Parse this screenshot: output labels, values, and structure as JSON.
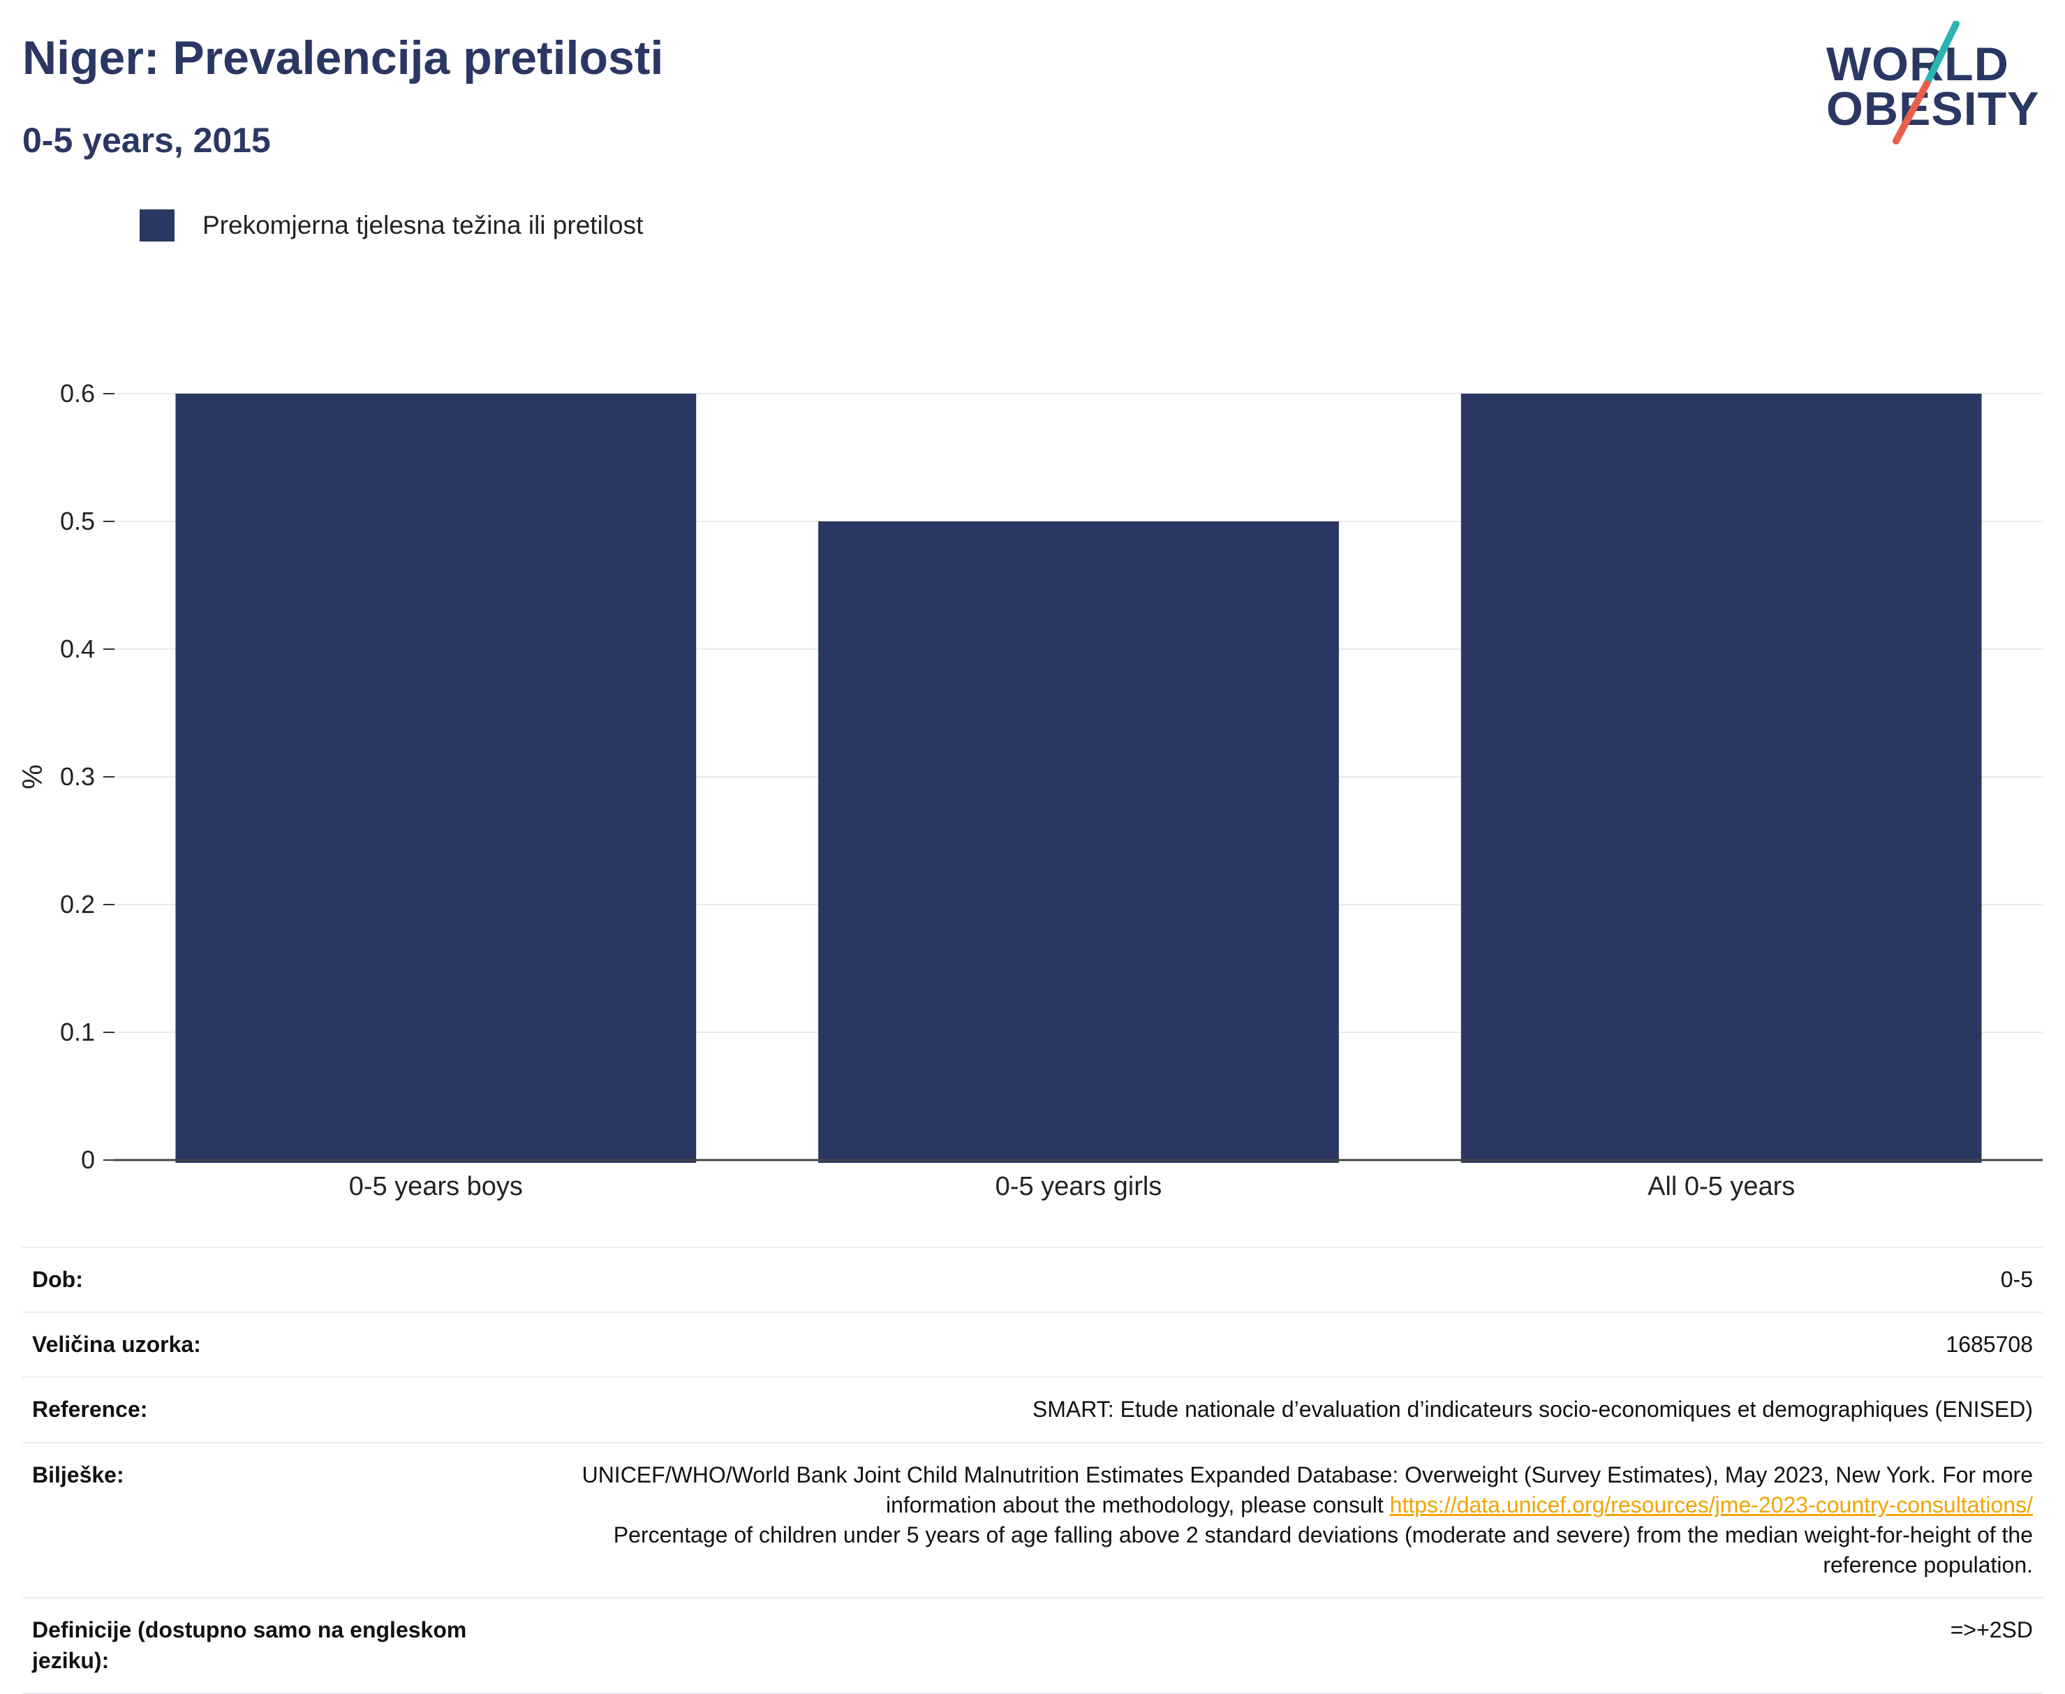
{
  "header": {
    "title": "Niger: Prevalencija pretilosti",
    "subtitle": "0-5 years, 2015"
  },
  "logo": {
    "line1": "WORLD",
    "line2": "OBESITY",
    "colors": {
      "text": "#2b3763",
      "slash_top": "#2ab3b1",
      "slash_bottom": "#e8604c"
    }
  },
  "legend": {
    "items": [
      {
        "label": "Prekomjerna tjelesna težina ili pretilost",
        "color": "#2b3763"
      }
    ]
  },
  "chart_data": {
    "type": "bar",
    "categories": [
      "0-5 years boys",
      "0-5 years girls",
      "All 0-5 years"
    ],
    "series": [
      {
        "name": "Prekomjerna tjelesna težina ili pretilost",
        "values": [
          0.6,
          0.5,
          0.6
        ],
        "color": "#2b3763"
      }
    ],
    "ylabel": "%",
    "xlabel": "",
    "ylim": [
      0,
      0.6
    ],
    "yticks": [
      "0",
      "0.1",
      "0.2",
      "0.3",
      "0.4",
      "0.5",
      "0.6"
    ],
    "grid": true,
    "legend_position": "top-left"
  },
  "info": {
    "rows": [
      {
        "key": "Dob:",
        "value": "0-5"
      },
      {
        "key": "Veličina uzorka:",
        "value": "1685708"
      },
      {
        "key": "Reference:",
        "value": "SMART: Etude nationale d’evaluation d’indicateurs socio-economiques et demographiques (ENISED)"
      },
      {
        "key": "Bilješke:",
        "value": "UNICEF/WHO/World Bank Joint Child Malnutrition Estimates Expanded Database: Overweight (Survey Estimates), May 2023, New York. For more information about the methodology, please consult",
        "link": "https://data.unicef.org/resources/jme-2023-country-consultations/",
        "value_after": "Percentage of children under 5 years of age falling above 2 standard deviations (moderate and severe) from the median weight-for-height of the reference population."
      },
      {
        "key": "Definicije (dostupno samo na engleskom jeziku):",
        "value": "=>+2SD"
      }
    ]
  }
}
